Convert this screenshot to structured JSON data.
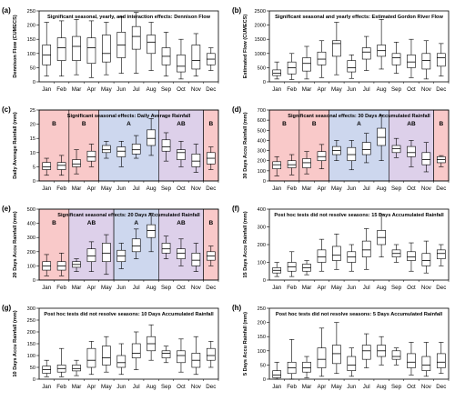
{
  "months": [
    "Jan",
    "Feb",
    "Mar",
    "Apr",
    "May",
    "Jun",
    "Jul",
    "Aug",
    "Sep",
    "Oct",
    "Nov",
    "Dec"
  ],
  "colors": {
    "pink": "#f9c9c9",
    "blue": "#cdd7ee",
    "purple": "#ddd0ea",
    "box_stroke": "#000000",
    "grid": "#000000"
  },
  "chart_data": [
    {
      "panel_label": "(a)",
      "type": "boxplot",
      "title": "Significant seasonal, yearly, and interaction effects: Dennison Flow",
      "ylabel": "Dennison Flow (CUMECS)",
      "xlabel": "",
      "ylim": [
        0,
        250
      ],
      "yticks": [
        0,
        50,
        100,
        150,
        200,
        250
      ],
      "seasons": [],
      "boxes": [
        {
          "min": 20,
          "q1": 60,
          "median": 95,
          "q3": 130,
          "max": 210
        },
        {
          "min": 20,
          "q1": 75,
          "median": 120,
          "q3": 155,
          "max": 215
        },
        {
          "min": 25,
          "q1": 75,
          "median": 125,
          "q3": 160,
          "max": 220
        },
        {
          "min": 15,
          "q1": 65,
          "median": 120,
          "q3": 155,
          "max": 215
        },
        {
          "min": 25,
          "q1": 70,
          "median": 100,
          "q3": 165,
          "max": 210
        },
        {
          "min": 30,
          "q1": 85,
          "median": 130,
          "q3": 175,
          "max": 230
        },
        {
          "min": 30,
          "q1": 115,
          "median": 160,
          "q3": 195,
          "max": 245
        },
        {
          "min": 40,
          "q1": 100,
          "median": 140,
          "q3": 165,
          "max": 210
        },
        {
          "min": 20,
          "q1": 60,
          "median": 90,
          "q3": 120,
          "max": 175
        },
        {
          "min": 10,
          "q1": 35,
          "median": 55,
          "q3": 95,
          "max": 150
        },
        {
          "min": 20,
          "q1": 45,
          "median": 75,
          "q3": 130,
          "max": 170
        },
        {
          "min": 40,
          "q1": 60,
          "median": 80,
          "q3": 100,
          "max": 120
        }
      ]
    },
    {
      "panel_label": "(b)",
      "type": "boxplot",
      "title": "Significant seasonal and yearly effects: Estimated Gordon River Flow",
      "ylabel": "Estimated Flow (CUMECS)",
      "xlabel": "",
      "ylim": [
        0,
        2500
      ],
      "yticks": [
        0,
        500,
        1000,
        1500,
        2000,
        2500
      ],
      "seasons": [],
      "boxes": [
        {
          "min": 100,
          "q1": 220,
          "median": 300,
          "q3": 420,
          "max": 700
        },
        {
          "min": 80,
          "q1": 280,
          "median": 500,
          "q3": 700,
          "max": 1000
        },
        {
          "min": 100,
          "q1": 380,
          "median": 650,
          "q3": 850,
          "max": 1250
        },
        {
          "min": 150,
          "q1": 600,
          "median": 800,
          "q3": 1050,
          "max": 1450
        },
        {
          "min": 250,
          "q1": 900,
          "median": 1350,
          "q3": 1450,
          "max": 2100
        },
        {
          "min": 120,
          "q1": 350,
          "median": 500,
          "q3": 750,
          "max": 950
        },
        {
          "min": 400,
          "q1": 800,
          "median": 1050,
          "q3": 1200,
          "max": 1600
        },
        {
          "min": 450,
          "q1": 900,
          "median": 1100,
          "q3": 1300,
          "max": 2200
        },
        {
          "min": 300,
          "q1": 600,
          "median": 850,
          "q3": 1000,
          "max": 1400
        },
        {
          "min": 150,
          "q1": 500,
          "median": 700,
          "q3": 950,
          "max": 1500
        },
        {
          "min": 100,
          "q1": 450,
          "median": 750,
          "q3": 1000,
          "max": 1450
        },
        {
          "min": 200,
          "q1": 550,
          "median": 850,
          "q3": 1000,
          "max": 1350
        }
      ]
    },
    {
      "panel_label": "(c)",
      "type": "boxplot",
      "title": "Significant seasonal effects: Daily Average Rainfall",
      "ylabel": "Daily Average Rainfall (mm)",
      "xlabel": "",
      "ylim": [
        0,
        25
      ],
      "yticks": [
        0,
        5,
        10,
        15,
        20,
        25
      ],
      "seasons": [
        {
          "label": "B",
          "start": 0,
          "end": 2,
          "color": "#f9c9c9"
        },
        {
          "label": "B",
          "start": 2,
          "end": 4,
          "color": "#f9c9c9"
        },
        {
          "label": "A",
          "start": 4,
          "end": 8,
          "color": "#cdd7ee"
        },
        {
          "label": "AB",
          "start": 8,
          "end": 11,
          "color": "#ddd0ea"
        },
        {
          "label": "B",
          "start": 11,
          "end": 12,
          "color": "#f9c9c9"
        }
      ],
      "boxes": [
        {
          "min": 2,
          "q1": 4,
          "median": 5,
          "q3": 6.5,
          "max": 8
        },
        {
          "min": 2,
          "q1": 4,
          "median": 5.5,
          "q3": 6.5,
          "max": 9
        },
        {
          "min": 2.5,
          "q1": 5,
          "median": 6,
          "q3": 7.5,
          "max": 11
        },
        {
          "min": 5,
          "q1": 7,
          "median": 8.5,
          "q3": 10.5,
          "max": 13
        },
        {
          "min": 8,
          "q1": 10,
          "median": 11,
          "q3": 12.5,
          "max": 14
        },
        {
          "min": 5,
          "q1": 8.5,
          "median": 10.5,
          "q3": 12,
          "max": 14
        },
        {
          "min": 8,
          "q1": 9.5,
          "median": 11,
          "q3": 13,
          "max": 16
        },
        {
          "min": 9,
          "q1": 12.5,
          "median": 15,
          "q3": 18,
          "max": 22
        },
        {
          "min": 7,
          "q1": 10.5,
          "median": 12,
          "q3": 14.5,
          "max": 17
        },
        {
          "min": 5,
          "q1": 7.5,
          "median": 10,
          "q3": 11,
          "max": 14
        },
        {
          "min": 3,
          "q1": 5,
          "median": 7,
          "q3": 9.5,
          "max": 13
        },
        {
          "min": 4,
          "q1": 6,
          "median": 8,
          "q3": 10,
          "max": 12
        }
      ]
    },
    {
      "panel_label": "(d)",
      "type": "boxplot",
      "title": "Significant seasonal effects: 30 Days Accumulated Rainfall",
      "ylabel": "30 Days Accu Rainfall (mm)",
      "xlabel": "",
      "ylim": [
        0,
        700
      ],
      "yticks": [
        0,
        100,
        200,
        300,
        400,
        500,
        600,
        700
      ],
      "seasons": [
        {
          "label": "B",
          "start": 0,
          "end": 2,
          "color": "#f9c9c9"
        },
        {
          "label": "B",
          "start": 2,
          "end": 4,
          "color": "#f9c9c9"
        },
        {
          "label": "A",
          "start": 4,
          "end": 8,
          "color": "#cdd7ee"
        },
        {
          "label": "AB",
          "start": 8,
          "end": 11,
          "color": "#ddd0ea"
        },
        {
          "label": "B",
          "start": 11,
          "end": 12,
          "color": "#f9c9c9"
        }
      ],
      "boxes": [
        {
          "min": 50,
          "q1": 120,
          "median": 160,
          "q3": 190,
          "max": 240
        },
        {
          "min": 60,
          "q1": 130,
          "median": 160,
          "q3": 200,
          "max": 260
        },
        {
          "min": 70,
          "q1": 130,
          "median": 180,
          "q3": 220,
          "max": 290
        },
        {
          "min": 120,
          "q1": 200,
          "median": 240,
          "q3": 290,
          "max": 360
        },
        {
          "min": 200,
          "q1": 260,
          "median": 300,
          "q3": 340,
          "max": 400
        },
        {
          "min": 110,
          "q1": 200,
          "median": 260,
          "q3": 330,
          "max": 400
        },
        {
          "min": 180,
          "q1": 260,
          "median": 310,
          "q3": 380,
          "max": 470
        },
        {
          "min": 200,
          "q1": 350,
          "median": 430,
          "q3": 520,
          "max": 650
        },
        {
          "min": 230,
          "q1": 280,
          "median": 320,
          "q3": 350,
          "max": 420
        },
        {
          "min": 140,
          "q1": 240,
          "median": 280,
          "q3": 340,
          "max": 400
        },
        {
          "min": 90,
          "q1": 160,
          "median": 210,
          "q3": 280,
          "max": 380
        },
        {
          "min": 140,
          "q1": 180,
          "median": 210,
          "q3": 240,
          "max": 250
        }
      ]
    },
    {
      "panel_label": "(e)",
      "type": "boxplot",
      "title": "Significant seasonal effects: 20 Days Accumulated Rainfall",
      "ylabel": "20 Days Accu Rainfall (mm)",
      "xlabel": "",
      "ylim": [
        0,
        500
      ],
      "yticks": [
        0,
        100,
        200,
        300,
        400,
        500
      ],
      "seasons": [
        {
          "label": "B",
          "start": 0,
          "end": 2,
          "color": "#f9c9c9"
        },
        {
          "label": "AB",
          "start": 2,
          "end": 5,
          "color": "#ddd0ea"
        },
        {
          "label": "A",
          "start": 5,
          "end": 8,
          "color": "#cdd7ee"
        },
        {
          "label": "AB",
          "start": 8,
          "end": 11,
          "color": "#ddd0ea"
        },
        {
          "label": "B",
          "start": 11,
          "end": 12,
          "color": "#f9c9c9"
        }
      ],
      "boxes": [
        {
          "min": 30,
          "q1": 70,
          "median": 100,
          "q3": 130,
          "max": 180
        },
        {
          "min": 30,
          "q1": 70,
          "median": 100,
          "q3": 130,
          "max": 190
        },
        {
          "min": 60,
          "q1": 90,
          "median": 110,
          "q3": 130,
          "max": 150
        },
        {
          "min": 60,
          "q1": 130,
          "median": 170,
          "q3": 220,
          "max": 270
        },
        {
          "min": 40,
          "q1": 130,
          "median": 190,
          "q3": 260,
          "max": 320
        },
        {
          "min": 80,
          "q1": 130,
          "median": 170,
          "q3": 210,
          "max": 260
        },
        {
          "min": 150,
          "q1": 200,
          "median": 240,
          "q3": 290,
          "max": 360
        },
        {
          "min": 200,
          "q1": 300,
          "median": 350,
          "q3": 390,
          "max": 470
        },
        {
          "min": 150,
          "q1": 190,
          "median": 220,
          "q3": 260,
          "max": 310
        },
        {
          "min": 100,
          "q1": 150,
          "median": 190,
          "q3": 220,
          "max": 290
        },
        {
          "min": 60,
          "q1": 100,
          "median": 140,
          "q3": 190,
          "max": 260
        },
        {
          "min": 100,
          "q1": 140,
          "median": 170,
          "q3": 200,
          "max": 240
        }
      ]
    },
    {
      "panel_label": "(f)",
      "type": "boxplot",
      "title": "Post hoc tests did not resolve seasons: 15 Days Accumulated Rainfall",
      "ylabel": "15 Days Accu Rainfall (mm)",
      "xlabel": "",
      "ylim": [
        0,
        400
      ],
      "yticks": [
        0,
        100,
        200,
        300,
        400
      ],
      "seasons": [],
      "boxes": [
        {
          "min": 20,
          "q1": 40,
          "median": 55,
          "q3": 70,
          "max": 100
        },
        {
          "min": 20,
          "q1": 50,
          "median": 75,
          "q3": 100,
          "max": 160
        },
        {
          "min": 30,
          "q1": 50,
          "median": 70,
          "q3": 90,
          "max": 110
        },
        {
          "min": 50,
          "q1": 100,
          "median": 130,
          "q3": 170,
          "max": 230
        },
        {
          "min": 60,
          "q1": 110,
          "median": 140,
          "q3": 190,
          "max": 260
        },
        {
          "min": 50,
          "q1": 100,
          "median": 130,
          "q3": 160,
          "max": 200
        },
        {
          "min": 60,
          "q1": 130,
          "median": 170,
          "q3": 220,
          "max": 290
        },
        {
          "min": 130,
          "q1": 200,
          "median": 240,
          "q3": 280,
          "max": 370
        },
        {
          "min": 100,
          "q1": 130,
          "median": 150,
          "q3": 170,
          "max": 200
        },
        {
          "min": 50,
          "q1": 110,
          "median": 130,
          "q3": 160,
          "max": 210
        },
        {
          "min": 40,
          "q1": 80,
          "median": 110,
          "q3": 150,
          "max": 220
        },
        {
          "min": 80,
          "q1": 120,
          "median": 150,
          "q3": 170,
          "max": 200
        }
      ]
    },
    {
      "panel_label": "(g)",
      "type": "boxplot",
      "title": "Post hoc tests did not resolve seasons: 10 Days Accumulated Rainfall",
      "ylabel": "10 Days Accu Rainfall (mm)",
      "xlabel": "",
      "ylim": [
        0,
        300
      ],
      "yticks": [
        0,
        50,
        100,
        150,
        200,
        250,
        300
      ],
      "seasons": [],
      "boxes": [
        {
          "min": 10,
          "q1": 25,
          "median": 40,
          "q3": 55,
          "max": 80
        },
        {
          "min": 10,
          "q1": 30,
          "median": 45,
          "q3": 60,
          "max": 130
        },
        {
          "min": 15,
          "q1": 35,
          "median": 45,
          "q3": 60,
          "max": 80
        },
        {
          "min": 20,
          "q1": 50,
          "median": 80,
          "q3": 130,
          "max": 160
        },
        {
          "min": 30,
          "q1": 60,
          "median": 90,
          "q3": 140,
          "max": 180
        },
        {
          "min": 20,
          "q1": 50,
          "median": 70,
          "q3": 100,
          "max": 150
        },
        {
          "min": 40,
          "q1": 90,
          "median": 110,
          "q3": 150,
          "max": 200
        },
        {
          "min": 80,
          "q1": 120,
          "median": 150,
          "q3": 180,
          "max": 230
        },
        {
          "min": 70,
          "q1": 90,
          "median": 110,
          "q3": 120,
          "max": 140
        },
        {
          "min": 30,
          "q1": 70,
          "median": 100,
          "q3": 120,
          "max": 170
        },
        {
          "min": 20,
          "q1": 50,
          "median": 80,
          "q3": 110,
          "max": 180
        },
        {
          "min": 50,
          "q1": 80,
          "median": 100,
          "q3": 130,
          "max": 160
        }
      ]
    },
    {
      "panel_label": "(h)",
      "type": "boxplot",
      "title": "Post hoc tests did not resolve seasons: 5 Days Accumulated Rainfall",
      "ylabel": "5 Days Accu Rainfall (mm)",
      "xlabel": "",
      "ylim": [
        0,
        250
      ],
      "yticks": [
        0,
        50,
        100,
        150,
        200,
        250
      ],
      "seasons": [],
      "boxes": [
        {
          "min": 0,
          "q1": 5,
          "median": 15,
          "q3": 30,
          "max": 60
        },
        {
          "min": 0,
          "q1": 20,
          "median": 40,
          "q3": 60,
          "max": 140
        },
        {
          "min": 5,
          "q1": 25,
          "median": 40,
          "q3": 60,
          "max": 80
        },
        {
          "min": 10,
          "q1": 40,
          "median": 70,
          "q3": 110,
          "max": 180
        },
        {
          "min": 20,
          "q1": 55,
          "median": 90,
          "q3": 120,
          "max": 200
        },
        {
          "min": 10,
          "q1": 30,
          "median": 50,
          "q3": 80,
          "max": 110
        },
        {
          "min": 40,
          "q1": 70,
          "median": 100,
          "q3": 120,
          "max": 160
        },
        {
          "min": 50,
          "q1": 80,
          "median": 100,
          "q3": 120,
          "max": 150
        },
        {
          "min": 50,
          "q1": 70,
          "median": 80,
          "q3": 100,
          "max": 110
        },
        {
          "min": 15,
          "q1": 40,
          "median": 60,
          "q3": 90,
          "max": 130
        },
        {
          "min": 10,
          "q1": 30,
          "median": 50,
          "q3": 80,
          "max": 130
        },
        {
          "min": 20,
          "q1": 40,
          "median": 60,
          "q3": 90,
          "max": 130
        }
      ]
    }
  ]
}
